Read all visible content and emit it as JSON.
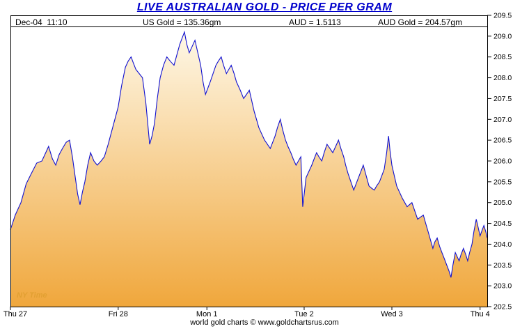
{
  "title": "LIVE AUSTRALIAN GOLD - PRICE PER GRAM",
  "header": {
    "timestamp": "Dec-04  11:10",
    "us_gold": "US Gold = 135.36gm",
    "aud": "AUD = 1.5113",
    "aud_gold": "AUD Gold = 204.57gm"
  },
  "ny_time_label": "NY Time",
  "footer": {
    "credit": "world gold charts © www.goldchartsrus.com"
  },
  "colors": {
    "title": "#0000CC",
    "line": "#1010D0",
    "fill_top": "#FFFDF2",
    "fill_bottom": "#F0A73C",
    "ny_time": "#E2A032",
    "axis": "#000000"
  },
  "chart_data": {
    "type": "area",
    "title": "LIVE AUSTRALIAN GOLD - PRICE PER GRAM",
    "ylim": [
      202.5,
      209.5
    ],
    "y_ticks": [
      "209.5",
      "209.0",
      "208.5",
      "208.0",
      "207.5",
      "207.0",
      "206.5",
      "206.0",
      "205.5",
      "205.0",
      "204.5",
      "204.0",
      "203.5",
      "203.0",
      "202.5"
    ],
    "x_ticks": [
      {
        "label": "Thu 27",
        "f": 0.0
      },
      {
        "label": "Fri 28",
        "f": 0.226
      },
      {
        "label": "Mon 1",
        "f": 0.412
      },
      {
        "label": "Tue 2",
        "f": 0.616
      },
      {
        "label": "Wed 3",
        "f": 0.8
      },
      {
        "label": "Thu 4",
        "f": 0.985
      }
    ],
    "grid": false,
    "legend": false,
    "points": [
      [
        0.0,
        204.35
      ],
      [
        0.01,
        204.7
      ],
      [
        0.022,
        205.0
      ],
      [
        0.033,
        205.45
      ],
      [
        0.044,
        205.7
      ],
      [
        0.055,
        205.95
      ],
      [
        0.066,
        206.0
      ],
      [
        0.074,
        206.2
      ],
      [
        0.08,
        206.35
      ],
      [
        0.088,
        206.05
      ],
      [
        0.095,
        205.9
      ],
      [
        0.102,
        206.15
      ],
      [
        0.109,
        206.3
      ],
      [
        0.117,
        206.45
      ],
      [
        0.124,
        206.5
      ],
      [
        0.13,
        206.1
      ],
      [
        0.136,
        205.6
      ],
      [
        0.141,
        205.2
      ],
      [
        0.146,
        204.95
      ],
      [
        0.151,
        205.25
      ],
      [
        0.156,
        205.5
      ],
      [
        0.162,
        205.9
      ],
      [
        0.168,
        206.2
      ],
      [
        0.175,
        206.0
      ],
      [
        0.182,
        205.9
      ],
      [
        0.19,
        206.0
      ],
      [
        0.197,
        206.1
      ],
      [
        0.205,
        206.4
      ],
      [
        0.212,
        206.7
      ],
      [
        0.219,
        207.0
      ],
      [
        0.226,
        207.3
      ],
      [
        0.233,
        207.8
      ],
      [
        0.241,
        208.25
      ],
      [
        0.247,
        208.4
      ],
      [
        0.253,
        208.5
      ],
      [
        0.258,
        208.35
      ],
      [
        0.263,
        208.2
      ],
      [
        0.27,
        208.1
      ],
      [
        0.277,
        208.0
      ],
      [
        0.284,
        207.4
      ],
      [
        0.292,
        206.4
      ],
      [
        0.297,
        206.6
      ],
      [
        0.302,
        206.9
      ],
      [
        0.308,
        207.5
      ],
      [
        0.314,
        208.0
      ],
      [
        0.321,
        208.3
      ],
      [
        0.328,
        208.5
      ],
      [
        0.335,
        208.4
      ],
      [
        0.343,
        208.3
      ],
      [
        0.349,
        208.55
      ],
      [
        0.355,
        208.8
      ],
      [
        0.36,
        208.95
      ],
      [
        0.365,
        209.1
      ],
      [
        0.37,
        208.8
      ],
      [
        0.375,
        208.6
      ],
      [
        0.381,
        208.75
      ],
      [
        0.387,
        208.9
      ],
      [
        0.393,
        208.6
      ],
      [
        0.399,
        208.3
      ],
      [
        0.404,
        207.9
      ],
      [
        0.409,
        207.6
      ],
      [
        0.414,
        207.75
      ],
      [
        0.419,
        207.9
      ],
      [
        0.425,
        208.1
      ],
      [
        0.431,
        208.3
      ],
      [
        0.436,
        208.4
      ],
      [
        0.442,
        208.5
      ],
      [
        0.447,
        208.3
      ],
      [
        0.453,
        208.1
      ],
      [
        0.458,
        208.2
      ],
      [
        0.463,
        208.3
      ],
      [
        0.469,
        208.1
      ],
      [
        0.474,
        207.9
      ],
      [
        0.482,
        207.7
      ],
      [
        0.489,
        207.5
      ],
      [
        0.495,
        207.6
      ],
      [
        0.501,
        207.7
      ],
      [
        0.506,
        207.45
      ],
      [
        0.511,
        207.2
      ],
      [
        0.516,
        207.0
      ],
      [
        0.521,
        206.8
      ],
      [
        0.527,
        206.65
      ],
      [
        0.533,
        206.5
      ],
      [
        0.539,
        206.4
      ],
      [
        0.545,
        206.3
      ],
      [
        0.55,
        206.45
      ],
      [
        0.555,
        206.6
      ],
      [
        0.56,
        206.8
      ],
      [
        0.566,
        207.0
      ],
      [
        0.571,
        206.75
      ],
      [
        0.577,
        206.5
      ],
      [
        0.582,
        206.35
      ],
      [
        0.588,
        206.2
      ],
      [
        0.593,
        206.05
      ],
      [
        0.599,
        205.9
      ],
      [
        0.604,
        206.0
      ],
      [
        0.609,
        206.1
      ],
      [
        0.613,
        204.9
      ],
      [
        0.616,
        205.2
      ],
      [
        0.62,
        205.6
      ],
      [
        0.626,
        205.75
      ],
      [
        0.632,
        205.9
      ],
      [
        0.637,
        206.05
      ],
      [
        0.642,
        206.2
      ],
      [
        0.647,
        206.1
      ],
      [
        0.653,
        206.0
      ],
      [
        0.658,
        206.2
      ],
      [
        0.664,
        206.4
      ],
      [
        0.67,
        206.3
      ],
      [
        0.676,
        206.2
      ],
      [
        0.682,
        206.35
      ],
      [
        0.688,
        206.5
      ],
      [
        0.693,
        206.3
      ],
      [
        0.699,
        206.1
      ],
      [
        0.703,
        205.9
      ],
      [
        0.708,
        205.7
      ],
      [
        0.714,
        205.5
      ],
      [
        0.72,
        205.3
      ],
      [
        0.725,
        205.45
      ],
      [
        0.73,
        205.6
      ],
      [
        0.735,
        205.75
      ],
      [
        0.74,
        205.9
      ],
      [
        0.746,
        205.65
      ],
      [
        0.752,
        205.4
      ],
      [
        0.757,
        205.35
      ],
      [
        0.763,
        205.3
      ],
      [
        0.768,
        205.4
      ],
      [
        0.774,
        205.5
      ],
      [
        0.779,
        205.65
      ],
      [
        0.784,
        205.8
      ],
      [
        0.789,
        206.2
      ],
      [
        0.793,
        206.6
      ],
      [
        0.796,
        206.25
      ],
      [
        0.8,
        205.9
      ],
      [
        0.805,
        205.65
      ],
      [
        0.81,
        205.4
      ],
      [
        0.816,
        205.25
      ],
      [
        0.822,
        205.1
      ],
      [
        0.827,
        205.0
      ],
      [
        0.832,
        204.9
      ],
      [
        0.837,
        204.95
      ],
      [
        0.842,
        205.0
      ],
      [
        0.848,
        204.8
      ],
      [
        0.854,
        204.6
      ],
      [
        0.86,
        204.65
      ],
      [
        0.866,
        204.7
      ],
      [
        0.871,
        204.5
      ],
      [
        0.876,
        204.3
      ],
      [
        0.881,
        204.1
      ],
      [
        0.886,
        203.9
      ],
      [
        0.89,
        204.05
      ],
      [
        0.895,
        204.15
      ],
      [
        0.9,
        203.95
      ],
      [
        0.905,
        203.8
      ],
      [
        0.91,
        203.65
      ],
      [
        0.915,
        203.5
      ],
      [
        0.92,
        203.35
      ],
      [
        0.924,
        203.2
      ],
      [
        0.928,
        203.5
      ],
      [
        0.933,
        203.8
      ],
      [
        0.937,
        203.7
      ],
      [
        0.941,
        203.6
      ],
      [
        0.945,
        203.75
      ],
      [
        0.95,
        203.9
      ],
      [
        0.955,
        203.75
      ],
      [
        0.959,
        203.6
      ],
      [
        0.963,
        203.8
      ],
      [
        0.968,
        204.0
      ],
      [
        0.972,
        204.3
      ],
      [
        0.977,
        204.6
      ],
      [
        0.981,
        204.4
      ],
      [
        0.985,
        204.2
      ],
      [
        0.989,
        204.33
      ],
      [
        0.993,
        204.45
      ],
      [
        0.997,
        204.3
      ],
      [
        1.0,
        204.15
      ]
    ]
  }
}
